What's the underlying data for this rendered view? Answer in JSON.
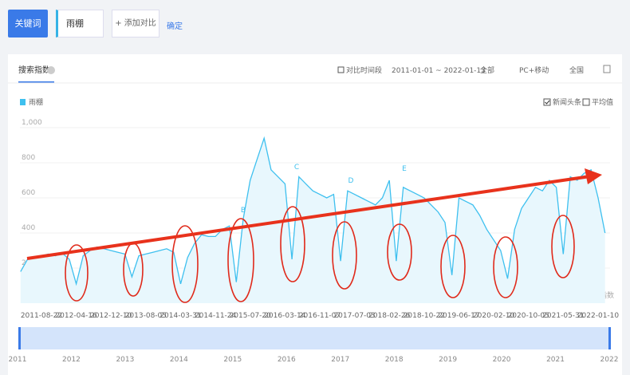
{
  "ui": {
    "keyword_button": "关键词",
    "keyword": "雨棚",
    "add_compare": "+ 添加对比",
    "confirm": "确定",
    "tab": "搜索指数",
    "compare_period": "对比时间段",
    "date_range": "2011-01-01 ~ 2022-01-13",
    "source": "全部",
    "device": "PC+移动",
    "region": "全国",
    "news": "新闻头条",
    "average": "平均值",
    "watermark": "@百度指数",
    "timeline_years": [
      "2011",
      "2012",
      "2013",
      "2014",
      "2015",
      "2016",
      "2017",
      "2018",
      "2019",
      "2020",
      "2021",
      "2022"
    ]
  },
  "chart_data": {
    "type": "line",
    "categories": [
      null,
      null,
      null,
      "2011-08-22",
      null,
      null,
      null,
      null,
      "2012-04-16",
      null,
      null,
      null,
      null,
      "2012-12-10",
      null,
      null,
      null,
      null,
      "2013-08-05",
      null,
      null,
      null,
      null,
      "2014-03-31",
      null,
      null,
      null,
      null,
      "2014-11-24",
      null,
      null,
      null,
      null,
      "2015-07-20",
      null,
      null,
      null,
      null,
      "2016-03-14",
      null,
      null,
      null,
      null,
      "2016-11-07",
      null,
      null,
      null,
      null,
      "2017-07-03",
      null,
      null,
      null,
      null,
      "2018-02-26",
      null,
      null,
      null,
      null,
      "2018-10-22",
      null,
      null,
      null,
      null,
      "2019-06-17",
      null,
      null,
      null,
      null,
      "2020-02-10",
      null,
      null,
      null,
      null,
      "2020-10-05",
      null,
      null,
      null,
      null,
      "2021-05-31",
      null,
      null,
      null,
      null,
      "2022-01-10",
      null
    ],
    "series": [
      {
        "name": "雨棚",
        "color": "#3ec0ef",
        "values": [
          180,
          250,
          260,
          270,
          280,
          270,
          285,
          250,
          110,
          270,
          300,
          320,
          310,
          300,
          290,
          280,
          150,
          270,
          280,
          290,
          300,
          310,
          290,
          110,
          260,
          340,
          390,
          380,
          380,
          420,
          440,
          120,
          480,
          700,
          820,
          940,
          760,
          720,
          680,
          250,
          720,
          680,
          640,
          620,
          600,
          620,
          240,
          640,
          620,
          600,
          580,
          560,
          600,
          700,
          240,
          660,
          640,
          620,
          600,
          560,
          520,
          460,
          160,
          600,
          580,
          560,
          500,
          420,
          360,
          300,
          140,
          420,
          540,
          600,
          660,
          640,
          700,
          660,
          280,
          720,
          700,
          740,
          760,
          600,
          400
        ]
      }
    ],
    "ylim": [
      0,
      1000
    ],
    "yticks": [
      {
        "value": 1000,
        "label": "1,000"
      },
      800,
      600,
      400,
      200
    ],
    "grid": true,
    "annotations": [
      "B",
      "C",
      "D",
      "E"
    ]
  }
}
